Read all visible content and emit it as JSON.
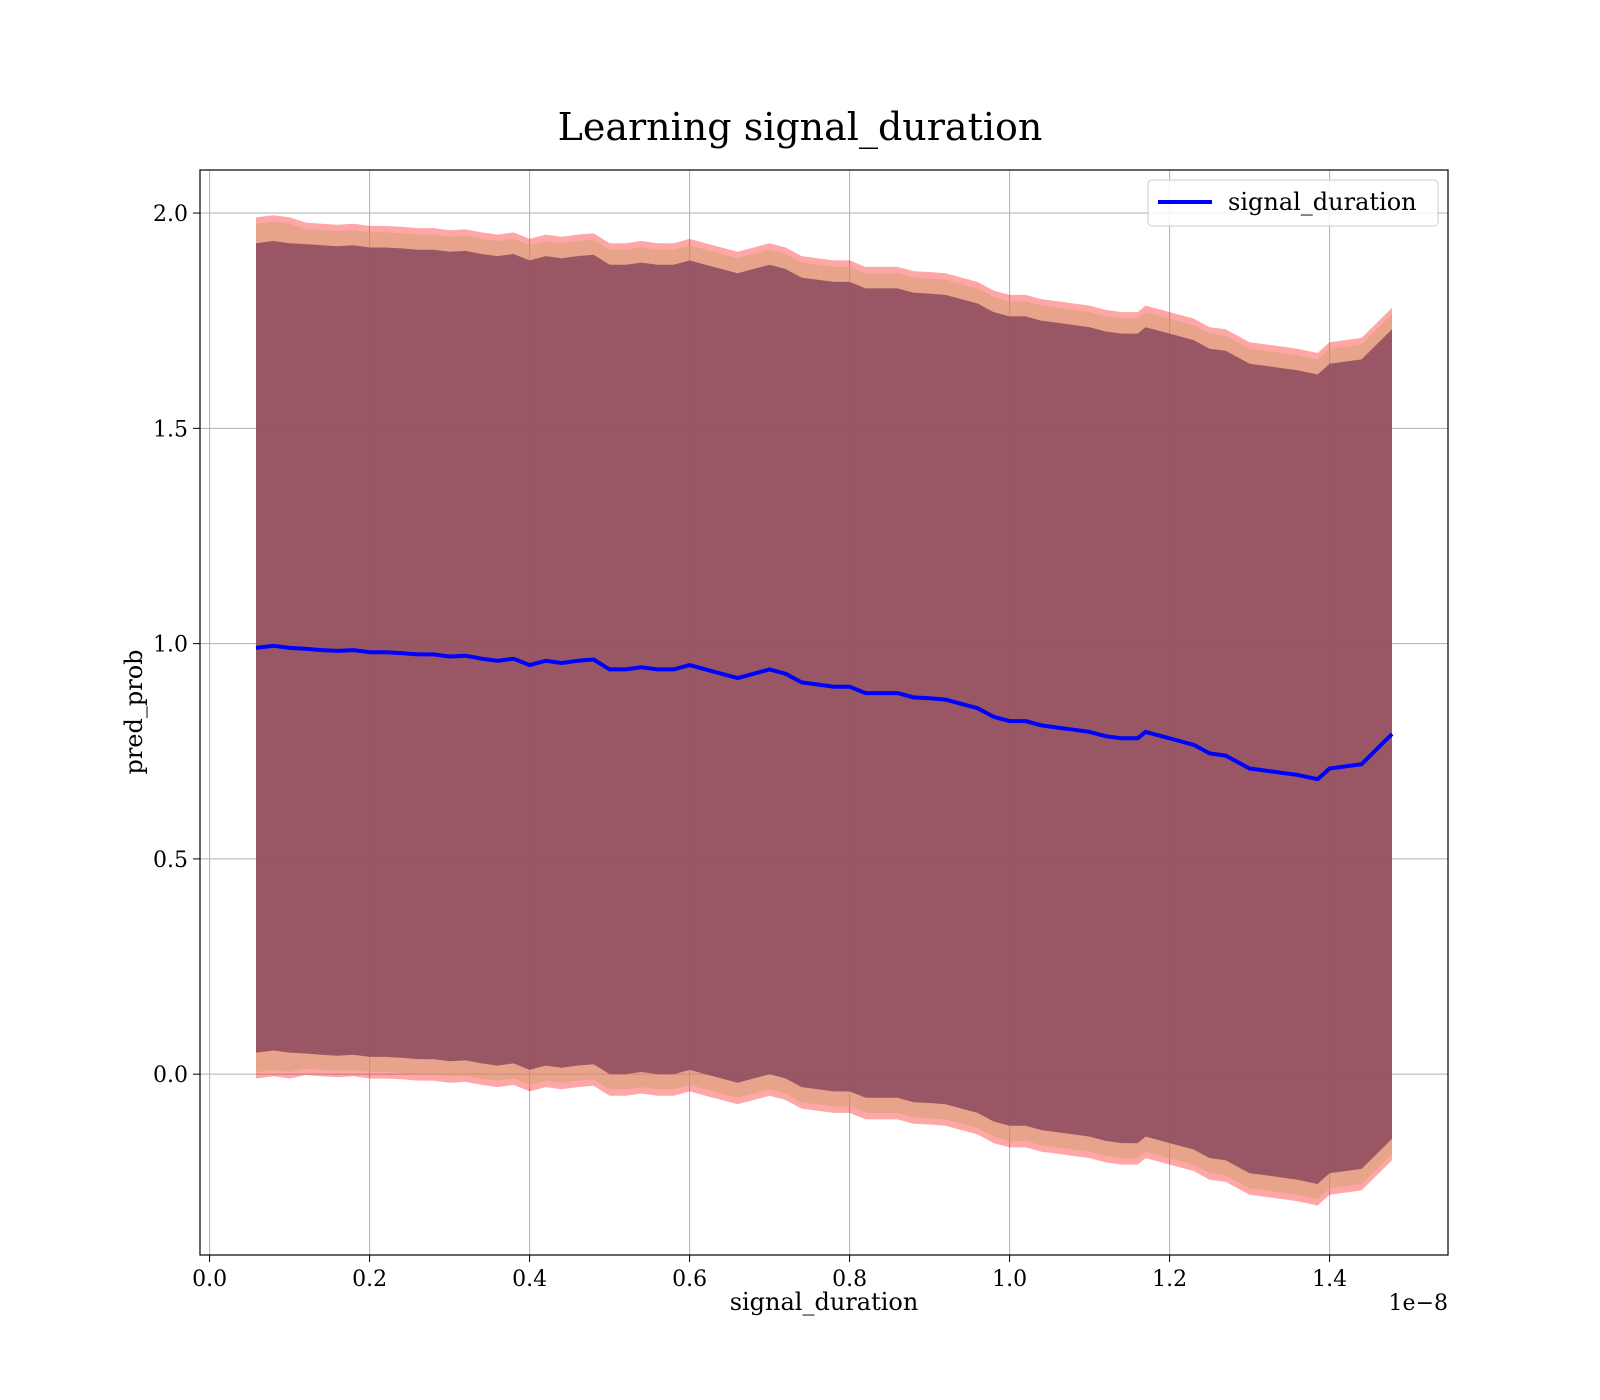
{
  "chart_data": {
    "type": "line",
    "title": "Learning signal_duration",
    "xlabel": "signal_duration",
    "ylabel": "pred_prob",
    "x_offset_label": "1e−8",
    "xlim": [
      -0.012,
      1.548
    ],
    "ylim": [
      -0.42,
      2.1
    ],
    "xticks": [
      0.0,
      0.2,
      0.4,
      0.6,
      0.8,
      1.0,
      1.2,
      1.4
    ],
    "xtick_labels": [
      "0.0",
      "0.2",
      "0.4",
      "0.6",
      "0.8",
      "1.0",
      "1.2",
      "1.4"
    ],
    "yticks": [
      0.0,
      0.5,
      1.0,
      1.5,
      2.0
    ],
    "ytick_labels": [
      "0.0",
      "0.5",
      "1.0",
      "1.5",
      "2.0"
    ],
    "grid": true,
    "legend_position": "top-right",
    "series": [
      {
        "name": "signal_duration",
        "color": "#0000ff",
        "x": [
          0.058,
          0.08,
          0.1,
          0.12,
          0.14,
          0.16,
          0.18,
          0.2,
          0.22,
          0.24,
          0.26,
          0.28,
          0.3,
          0.32,
          0.34,
          0.36,
          0.38,
          0.4,
          0.42,
          0.44,
          0.46,
          0.48,
          0.5,
          0.52,
          0.54,
          0.56,
          0.58,
          0.6,
          0.62,
          0.64,
          0.66,
          0.68,
          0.7,
          0.72,
          0.74,
          0.76,
          0.78,
          0.8,
          0.82,
          0.84,
          0.86,
          0.88,
          0.9,
          0.92,
          0.94,
          0.96,
          0.98,
          1.0,
          1.02,
          1.04,
          1.06,
          1.08,
          1.1,
          1.12,
          1.14,
          1.16,
          1.17,
          1.19,
          1.21,
          1.23,
          1.25,
          1.27,
          1.3,
          1.32,
          1.34,
          1.36,
          1.385,
          1.4,
          1.44,
          1.478
        ],
        "values": [
          0.99,
          0.995,
          0.99,
          0.988,
          0.985,
          0.983,
          0.985,
          0.98,
          0.98,
          0.978,
          0.975,
          0.975,
          0.97,
          0.972,
          0.965,
          0.96,
          0.965,
          0.95,
          0.96,
          0.955,
          0.96,
          0.963,
          0.94,
          0.94,
          0.945,
          0.94,
          0.94,
          0.95,
          0.94,
          0.93,
          0.92,
          0.93,
          0.94,
          0.93,
          0.91,
          0.905,
          0.9,
          0.9,
          0.885,
          0.885,
          0.885,
          0.875,
          0.873,
          0.87,
          0.86,
          0.85,
          0.83,
          0.82,
          0.82,
          0.81,
          0.805,
          0.8,
          0.795,
          0.785,
          0.78,
          0.78,
          0.795,
          0.785,
          0.775,
          0.765,
          0.745,
          0.74,
          0.71,
          0.705,
          0.7,
          0.695,
          0.685,
          0.71,
          0.72,
          0.79
        ]
      }
    ],
    "bands": [
      {
        "role": "outer",
        "color": "#ff0000",
        "half_width": [
          1.0,
          1.0,
          1.0,
          0.99,
          0.99,
          0.99,
          0.99,
          0.99,
          0.99,
          0.99,
          0.99,
          0.99,
          0.99,
          0.99,
          0.99,
          0.99,
          0.99,
          0.99,
          0.99,
          0.99,
          0.99,
          0.99,
          0.99,
          0.99,
          0.99,
          0.99,
          0.99,
          0.99,
          0.99,
          0.99,
          0.99,
          0.99,
          0.99,
          0.99,
          0.99,
          0.99,
          0.99,
          0.99,
          0.99,
          0.99,
          0.99,
          0.99,
          0.99,
          0.99,
          0.99,
          0.99,
          0.99,
          0.99,
          0.99,
          0.99,
          0.99,
          0.99,
          0.99,
          0.99,
          0.99,
          0.99,
          0.99,
          0.99,
          0.99,
          0.99,
          0.99,
          0.99,
          0.99,
          0.99,
          0.99,
          0.99,
          0.99,
          0.99,
          0.99,
          0.99
        ]
      },
      {
        "role": "middle",
        "color": "#d4a373",
        "half_width": [
          0.985,
          0.985,
          0.985,
          0.975,
          0.975,
          0.975,
          0.975,
          0.975,
          0.975,
          0.975,
          0.975,
          0.975,
          0.975,
          0.975,
          0.975,
          0.975,
          0.975,
          0.975,
          0.975,
          0.975,
          0.975,
          0.975,
          0.975,
          0.975,
          0.975,
          0.975,
          0.975,
          0.975,
          0.975,
          0.975,
          0.975,
          0.975,
          0.975,
          0.975,
          0.975,
          0.975,
          0.975,
          0.975,
          0.975,
          0.975,
          0.975,
          0.975,
          0.975,
          0.975,
          0.975,
          0.975,
          0.975,
          0.975,
          0.975,
          0.975,
          0.975,
          0.975,
          0.975,
          0.975,
          0.975,
          0.975,
          0.975,
          0.975,
          0.975,
          0.975,
          0.975,
          0.975,
          0.975,
          0.975,
          0.975,
          0.975,
          0.975,
          0.975,
          0.975,
          0.975
        ]
      },
      {
        "role": "inner",
        "color": "#8b4a5e",
        "half_width": [
          0.94,
          0.94,
          0.94,
          0.94,
          0.94,
          0.94,
          0.94,
          0.94,
          0.94,
          0.94,
          0.94,
          0.94,
          0.94,
          0.94,
          0.94,
          0.94,
          0.94,
          0.94,
          0.94,
          0.94,
          0.94,
          0.94,
          0.94,
          0.94,
          0.94,
          0.94,
          0.94,
          0.94,
          0.94,
          0.94,
          0.94,
          0.94,
          0.94,
          0.94,
          0.94,
          0.94,
          0.94,
          0.94,
          0.94,
          0.94,
          0.94,
          0.94,
          0.94,
          0.94,
          0.94,
          0.94,
          0.94,
          0.94,
          0.94,
          0.94,
          0.94,
          0.94,
          0.94,
          0.94,
          0.94,
          0.94,
          0.94,
          0.94,
          0.94,
          0.94,
          0.94,
          0.94,
          0.94,
          0.94,
          0.94,
          0.94,
          0.94,
          0.94,
          0.94,
          0.94
        ]
      }
    ]
  }
}
